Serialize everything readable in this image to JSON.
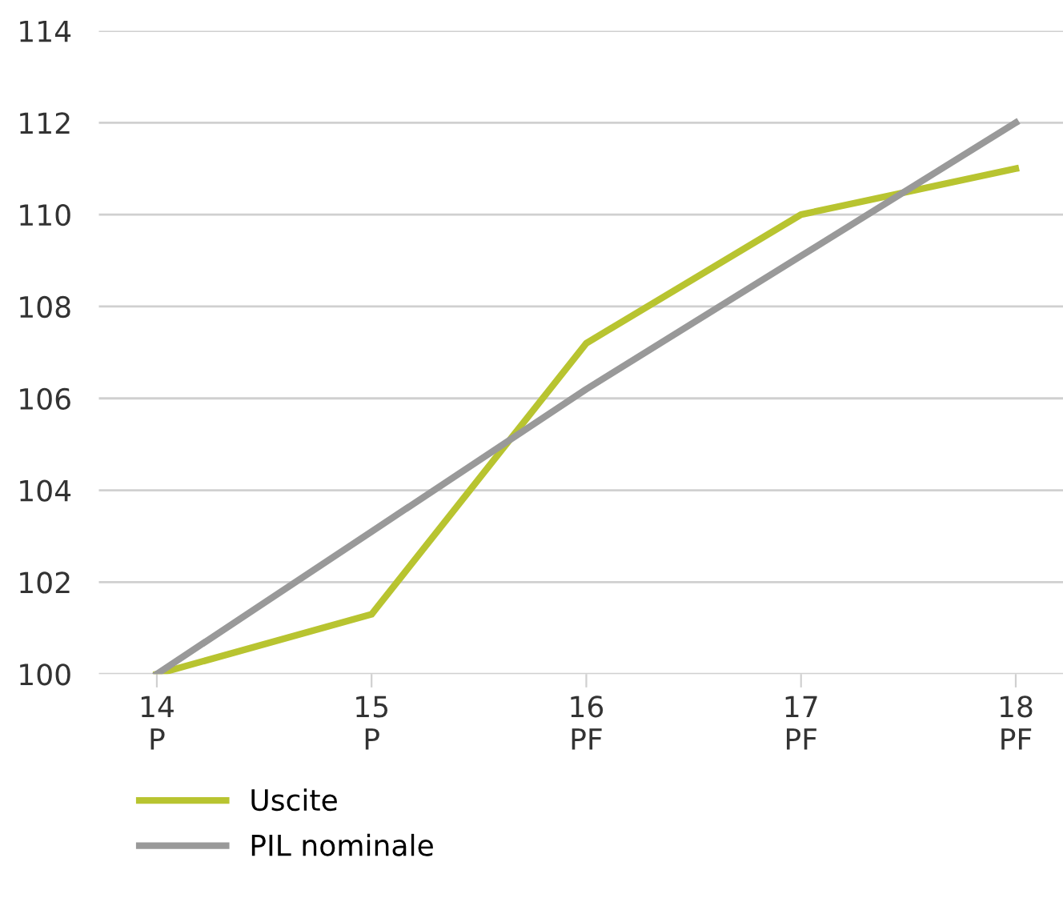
{
  "chart_data": {
    "type": "line",
    "categories": [
      "14\nP",
      "15\nP",
      "16\nPF",
      "17\nPF",
      "18\nPF"
    ],
    "series": [
      {
        "name": "Uscite",
        "color": "#b8c430",
        "values": [
          100,
          101.3,
          107.2,
          110,
          111
        ]
      },
      {
        "name": "PIL nominale",
        "color": "#999999",
        "values": [
          100,
          103.1,
          106.2,
          109.1,
          112
        ]
      }
    ],
    "ylim": [
      100,
      114
    ],
    "yticks": [
      100,
      102,
      104,
      106,
      108,
      110,
      112,
      114
    ],
    "grid": "y",
    "legend": "bottom left",
    "marker": "none",
    "line_style": "solid"
  }
}
